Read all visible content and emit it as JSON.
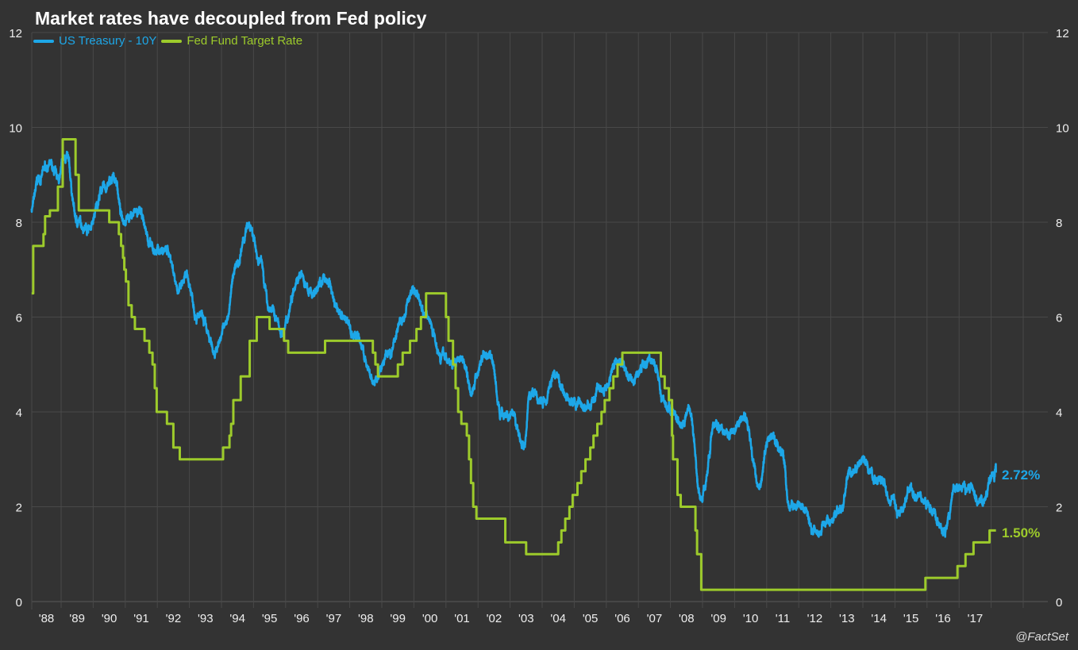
{
  "chart_data": {
    "type": "line",
    "title": "Market rates have decoupled from Fed policy",
    "source": "@FactSet",
    "xlabel": "",
    "ylabel": "",
    "ylim": [
      0,
      12
    ],
    "y_ticks": [
      "0",
      "2",
      "4",
      "6",
      "8",
      "10",
      "12"
    ],
    "x_ticks": [
      "'88",
      "'89",
      "'90",
      "'91",
      "'92",
      "'93",
      "'94",
      "'95",
      "'96",
      "'97",
      "'98",
      "'99",
      "'00",
      "'01",
      "'02",
      "'03",
      "'04",
      "'05",
      "'06",
      "'07",
      "'08",
      "'09",
      "'10",
      "'11",
      "'12",
      "'13",
      "'14",
      "'15",
      "'16",
      "'17"
    ],
    "grid": true,
    "legend_placement": "top-left",
    "series": [
      {
        "name": "US Treasury - 10Y",
        "color": "#1da7e8",
        "end_label": "2.72%",
        "points": [
          [
            1988.08,
            8.3
          ],
          [
            1988.3,
            8.9
          ],
          [
            1988.6,
            9.2
          ],
          [
            1988.9,
            8.9
          ],
          [
            1989.15,
            9.4
          ],
          [
            1989.5,
            8.0
          ],
          [
            1989.9,
            7.9
          ],
          [
            1990.3,
            8.7
          ],
          [
            1990.7,
            8.9
          ],
          [
            1990.9,
            8.1
          ],
          [
            1991.4,
            8.2
          ],
          [
            1991.9,
            7.4
          ],
          [
            1992.3,
            7.4
          ],
          [
            1992.7,
            6.6
          ],
          [
            1992.9,
            6.8
          ],
          [
            1993.3,
            6.0
          ],
          [
            1993.8,
            5.3
          ],
          [
            1994.1,
            5.8
          ],
          [
            1994.5,
            7.2
          ],
          [
            1994.85,
            7.9
          ],
          [
            1995.2,
            7.2
          ],
          [
            1995.5,
            6.2
          ],
          [
            1995.9,
            5.7
          ],
          [
            1996.4,
            6.9
          ],
          [
            1996.8,
            6.5
          ],
          [
            1997.25,
            6.8
          ],
          [
            1997.7,
            6.1
          ],
          [
            1998.2,
            5.6
          ],
          [
            1998.75,
            4.6
          ],
          [
            1999.2,
            5.2
          ],
          [
            1999.6,
            5.9
          ],
          [
            2000.0,
            6.6
          ],
          [
            2000.4,
            6.0
          ],
          [
            2000.9,
            5.2
          ],
          [
            2001.2,
            5.0
          ],
          [
            2001.5,
            5.2
          ],
          [
            2001.8,
            4.5
          ],
          [
            2002.2,
            5.2
          ],
          [
            2002.4,
            5.2
          ],
          [
            2002.7,
            4.0
          ],
          [
            2003.0,
            3.9
          ],
          [
            2003.45,
            3.3
          ],
          [
            2003.6,
            4.4
          ],
          [
            2004.0,
            4.2
          ],
          [
            2004.4,
            4.8
          ],
          [
            2004.9,
            4.2
          ],
          [
            2005.4,
            4.1
          ],
          [
            2005.9,
            4.5
          ],
          [
            2006.4,
            5.1
          ],
          [
            2006.8,
            4.7
          ],
          [
            2007.4,
            5.1
          ],
          [
            2007.9,
            4.1
          ],
          [
            2008.3,
            3.8
          ],
          [
            2008.6,
            4.0
          ],
          [
            2008.95,
            2.2
          ],
          [
            2009.4,
            3.7
          ],
          [
            2009.9,
            3.6
          ],
          [
            2010.3,
            3.9
          ],
          [
            2010.75,
            2.5
          ],
          [
            2011.1,
            3.5
          ],
          [
            2011.5,
            3.1
          ],
          [
            2011.7,
            2.0
          ],
          [
            2012.1,
            2.0
          ],
          [
            2012.5,
            1.5
          ],
          [
            2012.9,
            1.7
          ],
          [
            2013.3,
            1.9
          ],
          [
            2013.6,
            2.7
          ],
          [
            2014.0,
            2.9
          ],
          [
            2014.4,
            2.6
          ],
          [
            2014.9,
            2.2
          ],
          [
            2015.1,
            1.8
          ],
          [
            2015.5,
            2.4
          ],
          [
            2015.9,
            2.2
          ],
          [
            2016.2,
            1.8
          ],
          [
            2016.55,
            1.45
          ],
          [
            2016.9,
            2.4
          ],
          [
            2017.3,
            2.4
          ],
          [
            2017.7,
            2.15
          ],
          [
            2018.08,
            2.6
          ],
          [
            2018.15,
            2.72
          ]
        ]
      },
      {
        "name": "Fed Fund Target Rate",
        "color": "#9dcb2b",
        "end_label": "1.50%",
        "step": true,
        "points": [
          [
            1988.08,
            6.5
          ],
          [
            1988.13,
            7.5
          ],
          [
            1988.45,
            7.75
          ],
          [
            1988.5,
            8.125
          ],
          [
            1988.65,
            8.25
          ],
          [
            1988.9,
            8.75
          ],
          [
            1989.05,
            9.75
          ],
          [
            1989.45,
            9.0
          ],
          [
            1989.55,
            8.25
          ],
          [
            1990.5,
            8.0
          ],
          [
            1990.8,
            7.75
          ],
          [
            1990.87,
            7.5
          ],
          [
            1990.93,
            7.25
          ],
          [
            1990.97,
            7.0
          ],
          [
            1991.02,
            6.75
          ],
          [
            1991.1,
            6.25
          ],
          [
            1991.2,
            6.0
          ],
          [
            1991.3,
            5.75
          ],
          [
            1991.6,
            5.5
          ],
          [
            1991.75,
            5.25
          ],
          [
            1991.85,
            5.0
          ],
          [
            1991.92,
            4.5
          ],
          [
            1991.98,
            4.0
          ],
          [
            1992.3,
            3.75
          ],
          [
            1992.5,
            3.25
          ],
          [
            1992.7,
            3.0
          ],
          [
            1994.05,
            3.25
          ],
          [
            1994.25,
            3.5
          ],
          [
            1994.3,
            3.75
          ],
          [
            1994.37,
            4.25
          ],
          [
            1994.6,
            4.75
          ],
          [
            1994.88,
            5.5
          ],
          [
            1995.1,
            6.0
          ],
          [
            1995.5,
            5.75
          ],
          [
            1995.95,
            5.5
          ],
          [
            1996.08,
            5.25
          ],
          [
            1997.23,
            5.5
          ],
          [
            1998.72,
            5.25
          ],
          [
            1998.8,
            5.0
          ],
          [
            1998.88,
            4.75
          ],
          [
            1999.5,
            5.0
          ],
          [
            1999.65,
            5.25
          ],
          [
            1999.88,
            5.5
          ],
          [
            2000.08,
            5.75
          ],
          [
            2000.22,
            6.0
          ],
          [
            2000.38,
            6.5
          ],
          [
            2001.0,
            6.0
          ],
          [
            2001.08,
            5.5
          ],
          [
            2001.22,
            5.0
          ],
          [
            2001.3,
            4.5
          ],
          [
            2001.38,
            4.0
          ],
          [
            2001.48,
            3.75
          ],
          [
            2001.65,
            3.5
          ],
          [
            2001.72,
            3.0
          ],
          [
            2001.78,
            2.5
          ],
          [
            2001.85,
            2.0
          ],
          [
            2001.95,
            1.75
          ],
          [
            2002.85,
            1.25
          ],
          [
            2003.5,
            1.0
          ],
          [
            2004.5,
            1.25
          ],
          [
            2004.6,
            1.5
          ],
          [
            2004.72,
            1.75
          ],
          [
            2004.85,
            2.0
          ],
          [
            2004.95,
            2.25
          ],
          [
            2005.1,
            2.5
          ],
          [
            2005.22,
            2.75
          ],
          [
            2005.35,
            3.0
          ],
          [
            2005.5,
            3.25
          ],
          [
            2005.6,
            3.5
          ],
          [
            2005.72,
            3.75
          ],
          [
            2005.85,
            4.0
          ],
          [
            2005.95,
            4.25
          ],
          [
            2006.1,
            4.5
          ],
          [
            2006.22,
            4.75
          ],
          [
            2006.35,
            5.0
          ],
          [
            2006.5,
            5.25
          ],
          [
            2007.7,
            4.75
          ],
          [
            2007.82,
            4.5
          ],
          [
            2007.95,
            4.25
          ],
          [
            2008.05,
            3.5
          ],
          [
            2008.08,
            3.0
          ],
          [
            2008.22,
            2.25
          ],
          [
            2008.32,
            2.0
          ],
          [
            2008.78,
            1.5
          ],
          [
            2008.83,
            1.0
          ],
          [
            2008.96,
            0.25
          ],
          [
            2015.95,
            0.5
          ],
          [
            2016.95,
            0.75
          ],
          [
            2017.2,
            1.0
          ],
          [
            2017.45,
            1.25
          ],
          [
            2017.95,
            1.5
          ],
          [
            2018.15,
            1.5
          ]
        ]
      }
    ]
  }
}
